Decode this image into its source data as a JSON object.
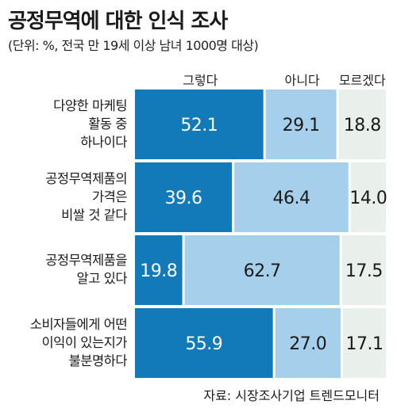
{
  "title": "공정무역에 대한 인식 조사",
  "subtitle": "(단위: %, 전국 만 19세 이상 남녀 1000명 대상)",
  "source": "자료: 시장조사기업 트렌드모니터",
  "colors": {
    "series1": "#137aba",
    "series2": "#a6cfec",
    "series3": "#e9efeb",
    "labelOnDark": "#ffffff",
    "labelOnLight": "#1a1a1a"
  },
  "chart_data": {
    "type": "bar",
    "orientation": "horizontal",
    "stacked": true,
    "normalized": true,
    "title": "공정무역에 대한 인식 조사",
    "subtitle": "(단위: %, 전국 만 19세 이상 남녀 1000명 대상)",
    "legend_position": "top",
    "grid": false,
    "categories": [
      "다양한 마케팅 활동 중 하나이다",
      "공정무역제품의 가격은 비쌀 것 같다",
      "공정무역제품을 알고 있다",
      "소비자들에게 어떤 이익이 있는지가 불분명하다"
    ],
    "category_lines": [
      [
        "다양한 마케팅",
        "활동 중",
        "하나이다"
      ],
      [
        "공정무역제품의",
        "가격은",
        "비쌀 것 같다"
      ],
      [
        "공정무역제품을",
        "알고 있다"
      ],
      [
        "소비자들에게 어떤",
        "이익이 있는지가",
        "불분명하다"
      ]
    ],
    "series": [
      {
        "name": "그렇다",
        "values": [
          52.1,
          39.6,
          19.8,
          55.9
        ]
      },
      {
        "name": "아니다",
        "values": [
          29.1,
          46.4,
          62.7,
          27.0
        ]
      },
      {
        "name": "모르겠다",
        "values": [
          18.8,
          14.0,
          17.5,
          17.1
        ]
      }
    ],
    "value_labels": [
      [
        "52.1",
        "39.6",
        "19.8",
        "55.9"
      ],
      [
        "29.1",
        "46.4",
        "62.7",
        "27.0"
      ],
      [
        "18.8",
        "14.0",
        "17.5",
        "17.1"
      ]
    ]
  }
}
